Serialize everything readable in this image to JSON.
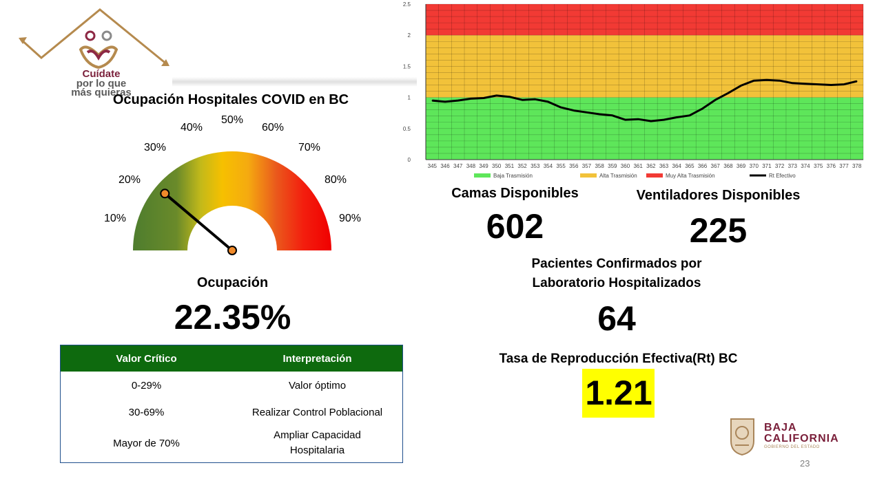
{
  "logo": {
    "line1": "Cuídate",
    "line2": "por lo que",
    "line3": "más quieras"
  },
  "gauge": {
    "title": "Ocupación Hospitales COVID en BC",
    "ticks": [
      "10%",
      "20%",
      "30%",
      "40%",
      "50%",
      "60%",
      "70%",
      "80%",
      "90%"
    ],
    "needle_value_percent": 22.35,
    "occupancy_label": "Ocupación",
    "occupancy_value": "22.35%"
  },
  "legend_table": {
    "headers": [
      "Valor Crítico",
      "Interpretación"
    ],
    "rows": [
      {
        "range": "0-29%",
        "meaning": "Valor óptimo"
      },
      {
        "range": "30-69%",
        "meaning": "Realizar Control Poblacional"
      },
      {
        "range": "Mayor de 70%",
        "meaning_line1": "Ampliar Capacidad",
        "meaning_line2": "Hospitalaria"
      }
    ]
  },
  "stats": {
    "beds_label": "Camas Disponibles",
    "beds_value": "602",
    "vent_label": "Ventiladores Disponibles",
    "vent_value": "225",
    "patients_label_line1": "Pacientes Confirmados por",
    "patients_label_line2": "Laboratorio Hospitalizados",
    "patients_value": "64",
    "rt_label": "Tasa de Reproducción Efectiva(Rt) BC",
    "rt_value": "1.21",
    "rt_highlight_color": "#ffff00"
  },
  "footer": {
    "brand_line1": "BAJA",
    "brand_line2": "CALIFORNIA",
    "brand_line3": "GOBIERNO DEL ESTADO",
    "page_number": "23"
  },
  "chart_data": {
    "type": "line",
    "x": [
      345,
      346,
      347,
      348,
      349,
      350,
      351,
      352,
      353,
      354,
      355,
      356,
      357,
      358,
      359,
      360,
      361,
      362,
      363,
      364,
      365,
      366,
      367,
      368,
      369,
      370,
      371,
      372,
      373,
      374,
      375,
      376,
      377,
      378
    ],
    "series": [
      {
        "name": "Rt Efectivo",
        "values": [
          0.95,
          0.93,
          0.95,
          0.98,
          0.99,
          1.03,
          1.01,
          0.96,
          0.97,
          0.93,
          0.84,
          0.79,
          0.76,
          0.73,
          0.71,
          0.64,
          0.65,
          0.62,
          0.64,
          0.68,
          0.71,
          0.82,
          0.96,
          1.07,
          1.19,
          1.27,
          1.28,
          1.27,
          1.23,
          1.22,
          1.21,
          1.2,
          1.21,
          1.26
        ]
      }
    ],
    "bands": [
      {
        "name": "Baja Trasmisión",
        "from": 0,
        "to": 1,
        "color": "#5ee65a"
      },
      {
        "name": "Alta Trasmisión",
        "from": 1,
        "to": 2,
        "color": "#f2c23a"
      },
      {
        "name": "Muy Alta Trasmisión",
        "from": 2,
        "to": 2.5,
        "color": "#f23a34"
      }
    ],
    "yticks": [
      "0",
      "0.5",
      "1",
      "1.5",
      "2",
      "2.5"
    ],
    "ylim": [
      0,
      2.5
    ],
    "grid": true,
    "legend_position": "bottom",
    "legend": [
      {
        "name": "Baja Trasmisión",
        "color": "#5ee65a"
      },
      {
        "name": "Alta Trasmisión",
        "color": "#f2c23a"
      },
      {
        "name": "Muy Alta Trasmisión",
        "color": "#f23a34"
      },
      {
        "name": "Rt Efectivo",
        "color": "#000000"
      }
    ]
  }
}
